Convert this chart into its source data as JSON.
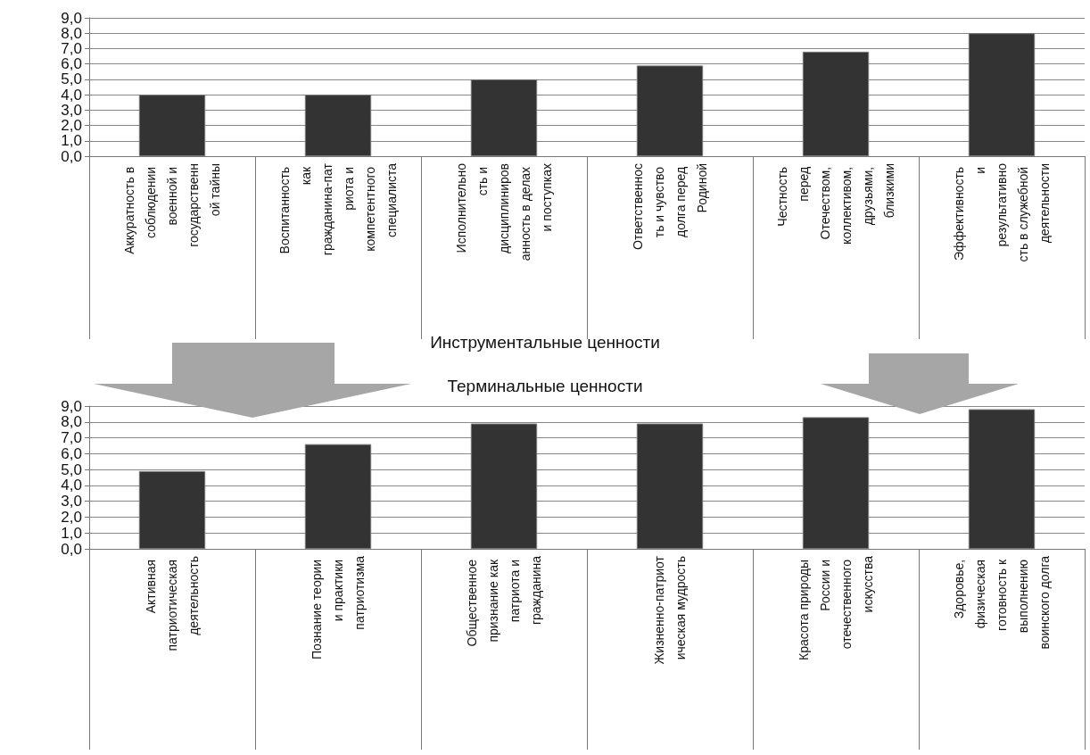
{
  "chart_data": [
    {
      "type": "bar",
      "title": "Инструментальные ценности",
      "categories": [
        "Аккуратность в соблюдении военной и государственной тайны",
        "Воспитанность как гражданина-патриота и компетентного специалиста",
        "Исполнительность и дисциплинированность в делах и поступках",
        "Ответственность и чувство долга перед Родиной",
        "Честность перед Отечеством, коллективом, друзьями, близкими",
        "Эффективность и результативность в служебной деятельности"
      ],
      "values": [
        4.0,
        4.0,
        5.0,
        5.9,
        6.8,
        8.0
      ],
      "color": "#333333",
      "ylim": [
        0,
        9
      ],
      "yticks": [
        {
          "value": 0,
          "label": "0,0"
        },
        {
          "value": 1,
          "label": "1,0"
        },
        {
          "value": 2,
          "label": "2,0"
        },
        {
          "value": 3,
          "label": "3,0"
        },
        {
          "value": 4,
          "label": "4,0"
        },
        {
          "value": 5,
          "label": "5,0"
        },
        {
          "value": 6,
          "label": "6,0"
        },
        {
          "value": 7,
          "label": "7,0"
        },
        {
          "value": 8,
          "label": "8,0"
        },
        {
          "value": 9,
          "label": "9,0"
        }
      ],
      "grid": "y"
    },
    {
      "type": "bar",
      "title": "Терминальные ценности",
      "categories": [
        "Активная патриотическая деятельность",
        "Познание теории и практики патриотизма",
        "Общественное признание как патриота и гражданина",
        "Жизненно-патриотическая мудрость",
        "Красота природы России и отечественного искусства",
        "Здоровье, физическая готовность к выполнению воинского долга"
      ],
      "values": [
        4.9,
        6.6,
        7.9,
        7.9,
        8.3,
        8.8
      ],
      "color": "#333333",
      "ylim": [
        0,
        9
      ],
      "yticks": [
        {
          "value": 0,
          "label": "0,0"
        },
        {
          "value": 1,
          "label": "1,0"
        },
        {
          "value": 2,
          "label": "2,0"
        },
        {
          "value": 3,
          "label": "3,0"
        },
        {
          "value": 4,
          "label": "4,0"
        },
        {
          "value": 5,
          "label": "5,0"
        },
        {
          "value": 6,
          "label": "6,0"
        },
        {
          "value": 7,
          "label": "7,0"
        },
        {
          "value": 8,
          "label": "8,0"
        },
        {
          "value": 9,
          "label": "9,0"
        }
      ],
      "grid": "y"
    }
  ]
}
